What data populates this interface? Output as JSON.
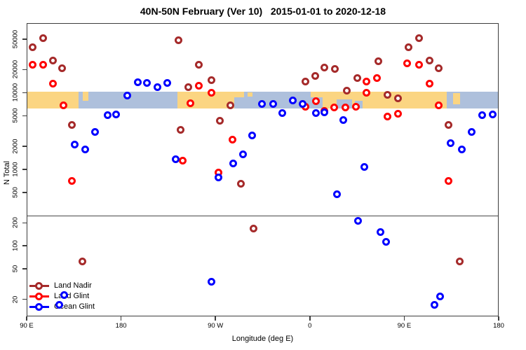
{
  "chart_data": {
    "type": "scatter",
    "title": "40N-50N February (Ver 10)   2015-01-01 to 2020-12-18",
    "xlabel": "Longitude (deg E)",
    "ylabel": "N Total",
    "x_axis": {
      "range_deg": [
        90,
        540
      ],
      "note": "wrapped longitude axis spanning 450 degrees eastward from 90E",
      "ticks": [
        {
          "label": "90 E",
          "deg": 90
        },
        {
          "label": "180",
          "deg": 180
        },
        {
          "label": "90 W",
          "deg": 270
        },
        {
          "label": "0",
          "deg": 360
        },
        {
          "label": "90 E",
          "deg": 450
        },
        {
          "label": "180",
          "deg": 540
        }
      ]
    },
    "y_axis": {
      "scale": "log10",
      "range": [
        12,
        81000
      ],
      "ticks": [
        {
          "label": "20",
          "n": 20
        },
        {
          "label": "50",
          "n": 50
        },
        {
          "label": "100",
          "n": 100
        },
        {
          "label": "200",
          "n": 200
        },
        {
          "label": "500",
          "n": 500
        },
        {
          "label": "1000",
          "n": 1000
        },
        {
          "label": "2000",
          "n": 2000
        },
        {
          "label": "5000",
          "n": 5000
        },
        {
          "label": "10000",
          "n": 10000
        },
        {
          "label": "20000",
          "n": 20000
        },
        {
          "label": "50000",
          "n": 50000
        }
      ]
    },
    "reference_line": {
      "n": 250,
      "color": "#474747"
    },
    "map_band": {
      "n_top": 10300,
      "n_bottom": 6200,
      "ocean_color": "#AEC0DC",
      "land_color": "#FBD582",
      "land_segments_deg": [
        [
          90,
          139.5
        ],
        [
          233.8,
          287.9
        ],
        [
          360.8,
          490.5
        ]
      ],
      "islands": [
        {
          "deg": [
            143.5,
            148.8
          ],
          "v": [
            0.0,
            0.55
          ]
        },
        {
          "deg": [
            287.9,
            297.5
          ],
          "v": [
            0.0,
            0.35
          ]
        },
        {
          "deg": [
            300.5,
            305.5
          ],
          "v": [
            0.05,
            0.3
          ]
        },
        {
          "deg": [
            496.5,
            503.0
          ],
          "v": [
            0.1,
            0.75
          ]
        }
      ],
      "lakes": [
        {
          "deg": [
            360.8,
            372.0
          ],
          "v": [
            0.35,
            1.0
          ]
        },
        {
          "deg": [
            385.5,
            400.0
          ],
          "v": [
            0.45,
            1.0
          ]
        },
        {
          "deg": [
            403.0,
            410.0
          ],
          "v": [
            0.55,
            1.0
          ]
        }
      ]
    },
    "series": [
      {
        "name": "Land Nadir",
        "color": "#A52A2A",
        "points": [
          [
            106,
            51000
          ],
          [
            96,
            39000
          ],
          [
            115,
            26000
          ],
          [
            124,
            21000
          ],
          [
            133,
            3800
          ],
          [
            143,
            63
          ],
          [
            235,
            48000
          ],
          [
            254,
            23000
          ],
          [
            266,
            14500
          ],
          [
            244,
            11700
          ],
          [
            284,
            6800
          ],
          [
            274,
            4300
          ],
          [
            237,
            3300
          ],
          [
            294,
            650
          ],
          [
            306,
            170
          ],
          [
            356,
            14000
          ],
          [
            374,
            21500
          ],
          [
            384,
            20500
          ],
          [
            365,
            16700
          ],
          [
            405,
            15400
          ],
          [
            395,
            10700
          ],
          [
            425,
            25500
          ],
          [
            434,
            9300
          ],
          [
            444,
            8500
          ],
          [
            464,
            51000
          ],
          [
            454,
            39000
          ],
          [
            474,
            26000
          ],
          [
            483,
            21000
          ],
          [
            492,
            3800
          ],
          [
            503,
            62
          ]
        ]
      },
      {
        "name": "Land Glint",
        "color": "#FF0000",
        "points": [
          [
            96,
            23000
          ],
          [
            106,
            23000
          ],
          [
            115,
            13000
          ],
          [
            125,
            6900
          ],
          [
            133,
            710
          ],
          [
            254,
            12200
          ],
          [
            266,
            9900
          ],
          [
            246,
            7350
          ],
          [
            239,
            1300
          ],
          [
            286,
            2460
          ],
          [
            273,
            900
          ],
          [
            356,
            6600
          ],
          [
            366,
            7800
          ],
          [
            374,
            5800
          ],
          [
            383,
            6350
          ],
          [
            394,
            6350
          ],
          [
            404,
            6600
          ],
          [
            414,
            14000
          ],
          [
            424,
            15400
          ],
          [
            414,
            10000
          ],
          [
            434,
            4900
          ],
          [
            444,
            5300
          ],
          [
            453,
            24000
          ],
          [
            464,
            23000
          ],
          [
            474,
            13000
          ],
          [
            483,
            6900
          ],
          [
            492,
            700
          ]
        ]
      },
      {
        "name": "Ocean Glint",
        "color": "#0000FF",
        "points": [
          [
            196,
            13600
          ],
          [
            205,
            13500
          ],
          [
            215,
            11700
          ],
          [
            224,
            13500
          ],
          [
            186,
            9250
          ],
          [
            167,
            5050
          ],
          [
            175,
            5200
          ],
          [
            155,
            3100
          ],
          [
            136,
            2100
          ],
          [
            146,
            1830
          ],
          [
            232,
            1340
          ],
          [
            126,
            23
          ],
          [
            121,
            17
          ],
          [
            305,
            2740
          ],
          [
            296,
            1550
          ],
          [
            287,
            1200
          ],
          [
            273,
            790
          ],
          [
            266,
            34
          ],
          [
            314,
            7100
          ],
          [
            325,
            7100
          ],
          [
            344,
            8000
          ],
          [
            353,
            7200
          ],
          [
            334,
            5400
          ],
          [
            366,
            5400
          ],
          [
            374,
            5570
          ],
          [
            392,
            4360
          ],
          [
            412,
            1080
          ],
          [
            386,
            475
          ],
          [
            406,
            214
          ],
          [
            427,
            150
          ],
          [
            433,
            114
          ],
          [
            494,
            2200
          ],
          [
            505,
            1830
          ],
          [
            514,
            3100
          ],
          [
            524,
            5100
          ],
          [
            534,
            5200
          ],
          [
            484,
            22
          ],
          [
            479,
            17
          ]
        ]
      }
    ],
    "legend": {
      "position": "bottom-left",
      "items": [
        {
          "label": "Land Nadir",
          "color": "#A52A2A"
        },
        {
          "label": "Land Glint",
          "color": "#FF0000"
        },
        {
          "label": "Ocean Glint",
          "color": "#0000FF"
        }
      ]
    }
  }
}
